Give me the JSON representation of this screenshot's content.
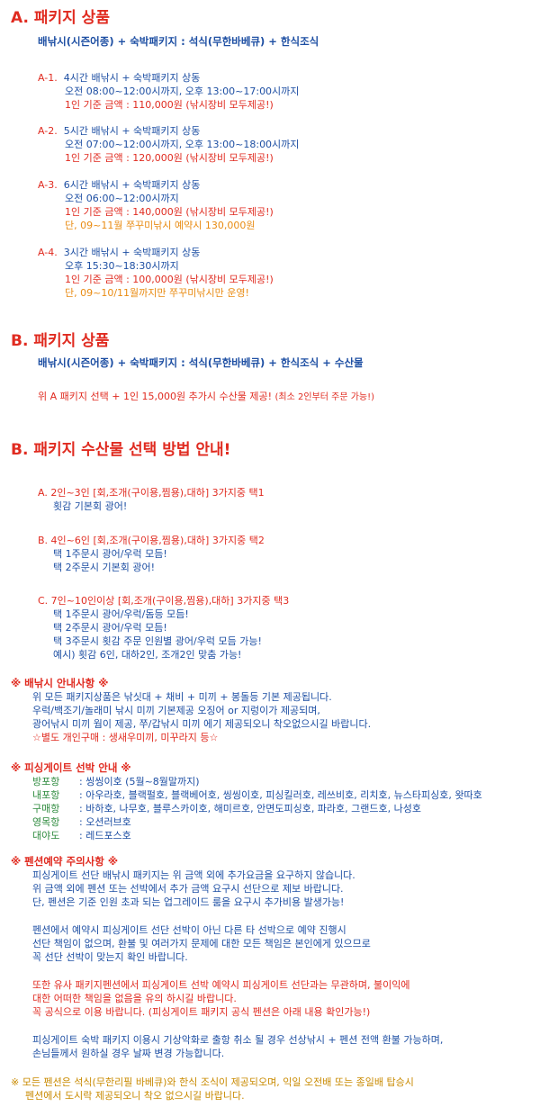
{
  "sectionA": {
    "title": "A. 패키지 상품",
    "subtitle": "배낚시(시즌어종) + 숙박패키지 : 석식(무한바베큐) + 한식조식",
    "packages": [
      {
        "code": "A-1.",
        "name": "4시간 배낚시 + 숙박패키지 상동",
        "time": "오전 08:00~12:00시까지, 오후 13:00~17:00시까지",
        "price": "1인 기준 금액 : 110,000원 (낚시장비 모두제공!)",
        "note": ""
      },
      {
        "code": "A-2.",
        "name": "5시간 배낚시 + 숙박패키지 상동",
        "time": "오전 07:00~12:00시까지, 오후 13:00~18:00시까지",
        "price": "1인 기준 금액 : 120,000원 (낚시장비 모두제공!)",
        "note": ""
      },
      {
        "code": "A-3.",
        "name": "6시간 배낚시 + 숙박패키지 상동",
        "time": "오전 06:00~12:00시까지",
        "price": "1인 기준 금액 : 140,000원 (낚시장비 모두제공!)",
        "note": "단, 09~11월 쭈꾸미낚시 예약시 130,000원"
      },
      {
        "code": "A-4.",
        "name": "3시간 배낚시 + 숙박패키지 상동",
        "time": "오후 15:30~18:30시까지",
        "price": "1인 기준 금액 : 100,000원 (낚시장비 모두제공!)",
        "note": "단, 09~10/11월까지만 쭈꾸미낚시만 운영!"
      }
    ]
  },
  "sectionB": {
    "title": "B. 패키지 상품",
    "subtitle": "배낚시(시즌어종) + 숙박패키지 : 석식(무한바베큐) + 한식조식 + 수산물",
    "line": "위 A 패키지 선택 + 1인 15,000원 추가시 수산물 제공!",
    "line_note": "(최소 2인부터 주문 가능!)"
  },
  "sectionC": {
    "title": "B. 패키지 수산물 선택 방법 안내!",
    "groups": [
      {
        "head": "A. 2인~3인 [회,조개(구이용,찜용),대하] 3가지중 택1",
        "lines": [
          "횟감 기본회 광어!"
        ]
      },
      {
        "head": "B. 4인~6인 [회,조개(구이용,찜용),대하] 3가지중 택2",
        "lines": [
          "택 1주문시 광어/우럭 모듬!",
          "택 2주문시 기본회 광어!"
        ]
      },
      {
        "head": "C. 7인~10인이상 [회,조개(구이용,찜용),대하] 3가지중 택3",
        "lines": [
          "택 1주문시 광어/우럭/돔등 모듬!",
          "택 2주문시 광어/우럭 모듬!",
          "택 3주문시 횟감 주문 인원별 광어/우럭 모듬 가능!",
          "예시) 횟감 6인, 대하2인, 조개2인 맞춤 가능!"
        ]
      }
    ]
  },
  "guide": {
    "title": "※ 배낚시 안내사항 ※",
    "lines": [
      "위 모든 패키지상품은 낚싯대 + 채비 + 미끼 + 봉돌등 기본 제공됩니다.",
      "우럭/백조기/놀래미 낚시 미끼 기본제공 오징어 or 지렁이가 제공되며,",
      "광어낚시 미끼 웜이 제공, 쭈/갑낚시 미끼 에기 제공되오니 착오없으시길 바랍니다."
    ],
    "extra": "☆별도 개인구매 : 생새우미끼, 미꾸라지 등☆"
  },
  "ships": {
    "title": "※ 피싱게이트 선박 안내 ※",
    "rows": [
      {
        "k": "방포항",
        "v": ": 씽씽이호 (5월~8월말까지)"
      },
      {
        "k": "내포항",
        "v": ": 아우라호, 블랙펄호, 블랙베어호, 씽씽이호, 피싱킬러호, 레쓰비호, 리치호, 뉴스타피싱호, 왓따호"
      },
      {
        "k": "구매항",
        "v": ": 바하호, 나무호, 블루스카이호, 해미르호, 안면도피싱호, 파라호, 그랜드호, 나성호"
      },
      {
        "k": "영목항",
        "v": ": 오션러브호"
      },
      {
        "k": "대야도",
        "v": ": 레드포스호"
      }
    ]
  },
  "caution": {
    "title": "※ 펜션예약 주의사항 ※",
    "p1": [
      "피싱게이트 선단 배낚시 패키지는 위 금액 외에 추가요금을 요구하지 않습니다.",
      "위 금액 외에 펜션 또는 선박에서 추가 금액 요구시 선단으로 제보 바랍니다.",
      "단, 펜션은 기준 인원 초과 되는 업그레이드 룸을 요구시 추가비용  발생가능!"
    ],
    "p2": [
      "펜션에서 예약시 피싱게이트 선단 선박이 아닌 다른 타 선박으로 예약 진행시",
      "선단 책임이 없으며, 환불 및 여러가지 문제에 대한 모든 책임은 본인에게 있으므로",
      "꼭 선단 선박이 맞는지 확인 바랍니다."
    ],
    "p3": [
      "또한 유사 패키지펜션에서 피싱게이트 선박 예약시 피싱게이트 선단과는 무관하며, 불이익에",
      "대한 어떠한 책임을 없음을 유의 하시길 바랍니다.",
      "꼭 공식으로 이용 바랍니다. (피싱게이트 패키지 공식 펜션은 아래 내용 확인가능!)"
    ],
    "p4": [
      "피싱게이트 숙박 패키지 이용시 기상악화로 출항 취소 될 경우 선상낚시 + 펜션 전액 환불 가능하며,",
      "손님들께서 원하실 경우 날짜 변경 가능합니다."
    ]
  },
  "footer": {
    "lines": [
      "※ 모든 펜션은 석식(무한리필 바베큐)와 한식 조식이 제공되오며, 익일 오전배 또는 종일배 탑승시",
      "펜션에서 도시락 제공되오니 착오 없으시길 바랍니다."
    ]
  }
}
